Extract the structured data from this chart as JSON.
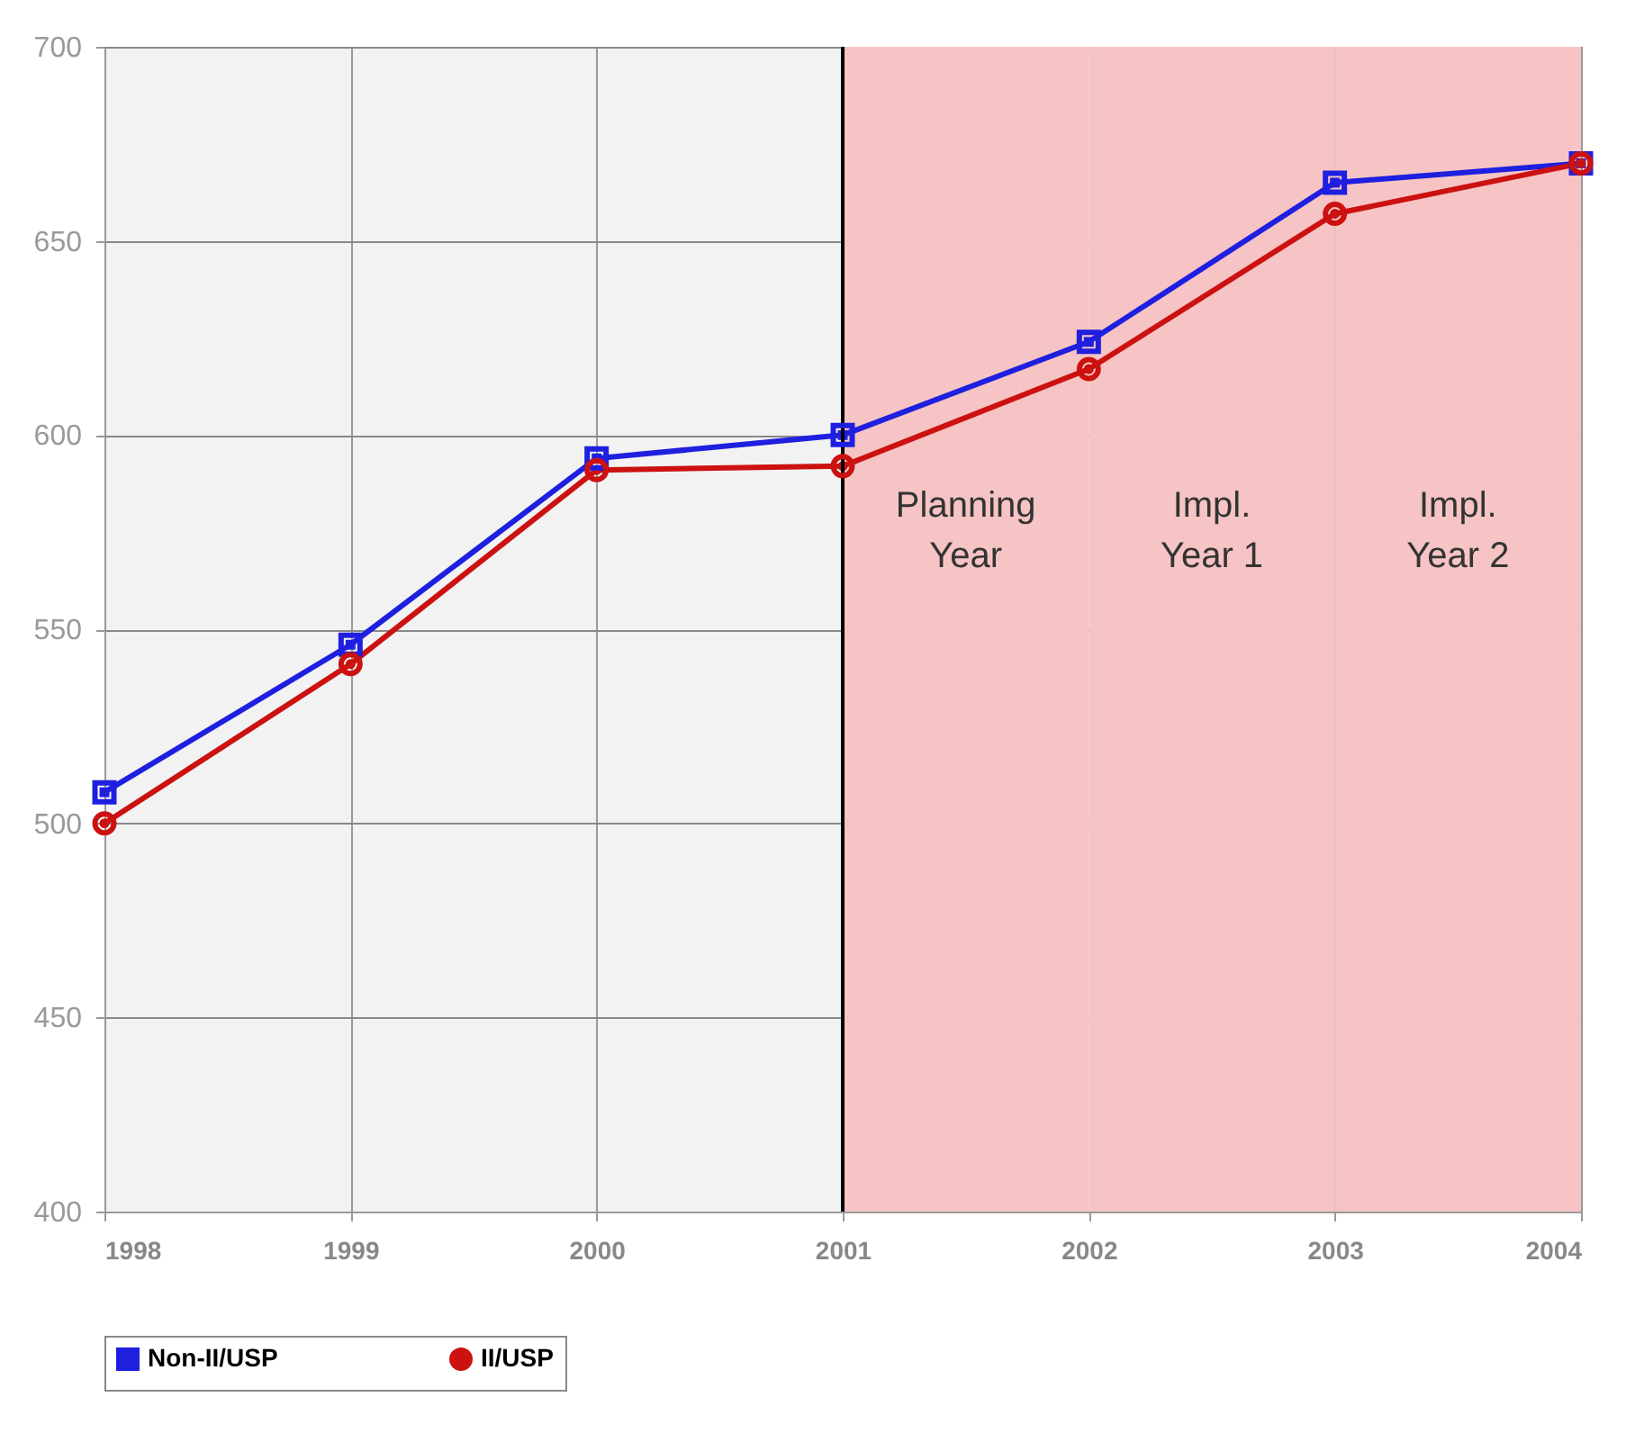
{
  "chart_data": {
    "type": "line",
    "x": [
      1998,
      1999,
      2000,
      2001,
      2002,
      2003,
      2004
    ],
    "series": [
      {
        "name": "Non-II/USP",
        "color": "#1f1fe0",
        "marker": "square",
        "values": [
          508,
          546,
          594,
          600,
          624,
          665,
          670
        ]
      },
      {
        "name": "II/USP",
        "color": "#cc1111",
        "marker": "circle",
        "values": [
          500,
          541,
          591,
          592,
          617,
          657,
          670
        ]
      }
    ],
    "xlim": [
      1998,
      2004
    ],
    "xticks": [
      1998,
      1999,
      2000,
      2001,
      2002,
      2003,
      2004
    ],
    "ylim": [
      400,
      700
    ],
    "yticks": [
      400,
      450,
      500,
      550,
      600,
      650,
      700
    ],
    "grid": true,
    "legend": "bottom",
    "ref_lines": [
      {
        "axis": "x",
        "value": 2001,
        "color": "#000000"
      }
    ],
    "bands": [
      {
        "axis": "x",
        "from": 2001,
        "to": 2002,
        "label": "Planning Year",
        "color": "#f6c4c4"
      },
      {
        "axis": "x",
        "from": 2002,
        "to": 2003,
        "label": "Impl. Year 1",
        "color": "#f6c4c4"
      },
      {
        "axis": "x",
        "from": 2003,
        "to": 2004,
        "label": "Impl. Year 2",
        "color": "#f6c4c4"
      }
    ]
  }
}
